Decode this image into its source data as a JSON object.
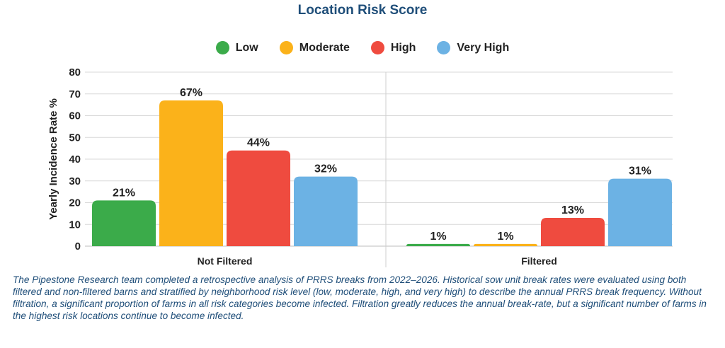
{
  "chart_data": {
    "type": "bar",
    "title": "Location Risk Score",
    "xlabel": "",
    "ylabel": "Yearly Incidence Rate %",
    "ylim": [
      0,
      80
    ],
    "yticks": [
      "0",
      "10",
      "20",
      "30",
      "40",
      "50",
      "60",
      "70",
      "80"
    ],
    "categories": [
      "Not Filtered",
      "Filtered"
    ],
    "grid": true,
    "legend_position": "top",
    "series": [
      {
        "name": "Low",
        "color": "#3bab4a",
        "values": [
          21,
          1
        ],
        "labels": [
          "21%",
          "1%"
        ]
      },
      {
        "name": "Moderate",
        "color": "#fbb21a",
        "values": [
          67,
          1
        ],
        "labels": [
          "67%",
          "1%"
        ]
      },
      {
        "name": "High",
        "color": "#ef4b3f",
        "values": [
          44,
          13
        ],
        "labels": [
          "44%",
          "13%"
        ]
      },
      {
        "name": "Very High",
        "color": "#6cb2e4",
        "values": [
          32,
          31
        ],
        "labels": [
          "32%",
          "31%"
        ]
      }
    ]
  },
  "caption": "The Pipestone Research team completed a retrospective analysis of PRRS breaks from 2022–2026. Historical sow unit break rates were evaluated using both filtered and non-filtered barns and stratified by neighborhood risk level (low, moderate, high, and very high) to describe the annual PRRS break frequency. Without filtration, a significant proportion of farms in all risk categories become infected. Filtration greatly reduces the annual break-rate, but a significant number of farms in the highest risk locations continue to become infected."
}
